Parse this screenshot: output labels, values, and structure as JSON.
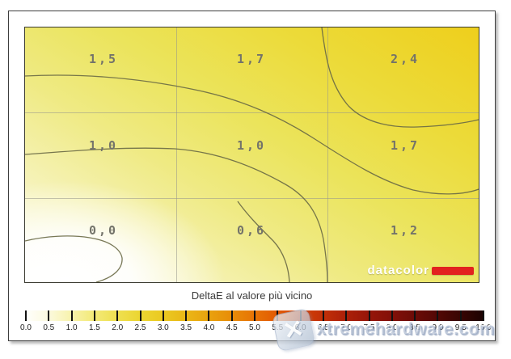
{
  "chart_data": {
    "type": "heatmap",
    "title": "DeltaE al valore più vicino",
    "description": "Contour map of DeltaE (nearest value) measured on a 3x3 grid of screen positions",
    "rows": 3,
    "cols": 3,
    "values": [
      [
        "1,5",
        "1,7",
        "2,4"
      ],
      [
        "1,0",
        "1,0",
        "1,7"
      ],
      [
        "0,0",
        "0,6",
        "1,2"
      ]
    ],
    "values_numeric": [
      [
        1.5,
        1.7,
        2.4
      ],
      [
        1.0,
        1.0,
        1.7
      ],
      [
        0.0,
        0.6,
        1.2
      ]
    ],
    "contour_levels": [
      0.5,
      1.0,
      1.5,
      2.0
    ],
    "grid": true,
    "legend_position": "bottom",
    "colorbar": {
      "min": 0.0,
      "max": 10.0,
      "step": 0.5,
      "tick_labels": [
        "0.0",
        "0.5",
        "1.0",
        "1.5",
        "2.0",
        "2.5",
        "3.0",
        "3.5",
        "4.0",
        "4.5",
        "5.0",
        "5.5",
        "6.0",
        "6.5",
        "7.0",
        "7.5",
        "8.0",
        "8.5",
        "9.0",
        "9.5",
        "10.0"
      ]
    }
  },
  "logo": {
    "text": "datacolor"
  },
  "watermark": {
    "text": "xtremehardware.com",
    "logo_glyph": "✕"
  },
  "colors": {
    "logo_bar": "#e2221f",
    "contour_label": "#73736a",
    "plot_high": "#eecf1c",
    "plot_low": "#ffffff"
  }
}
